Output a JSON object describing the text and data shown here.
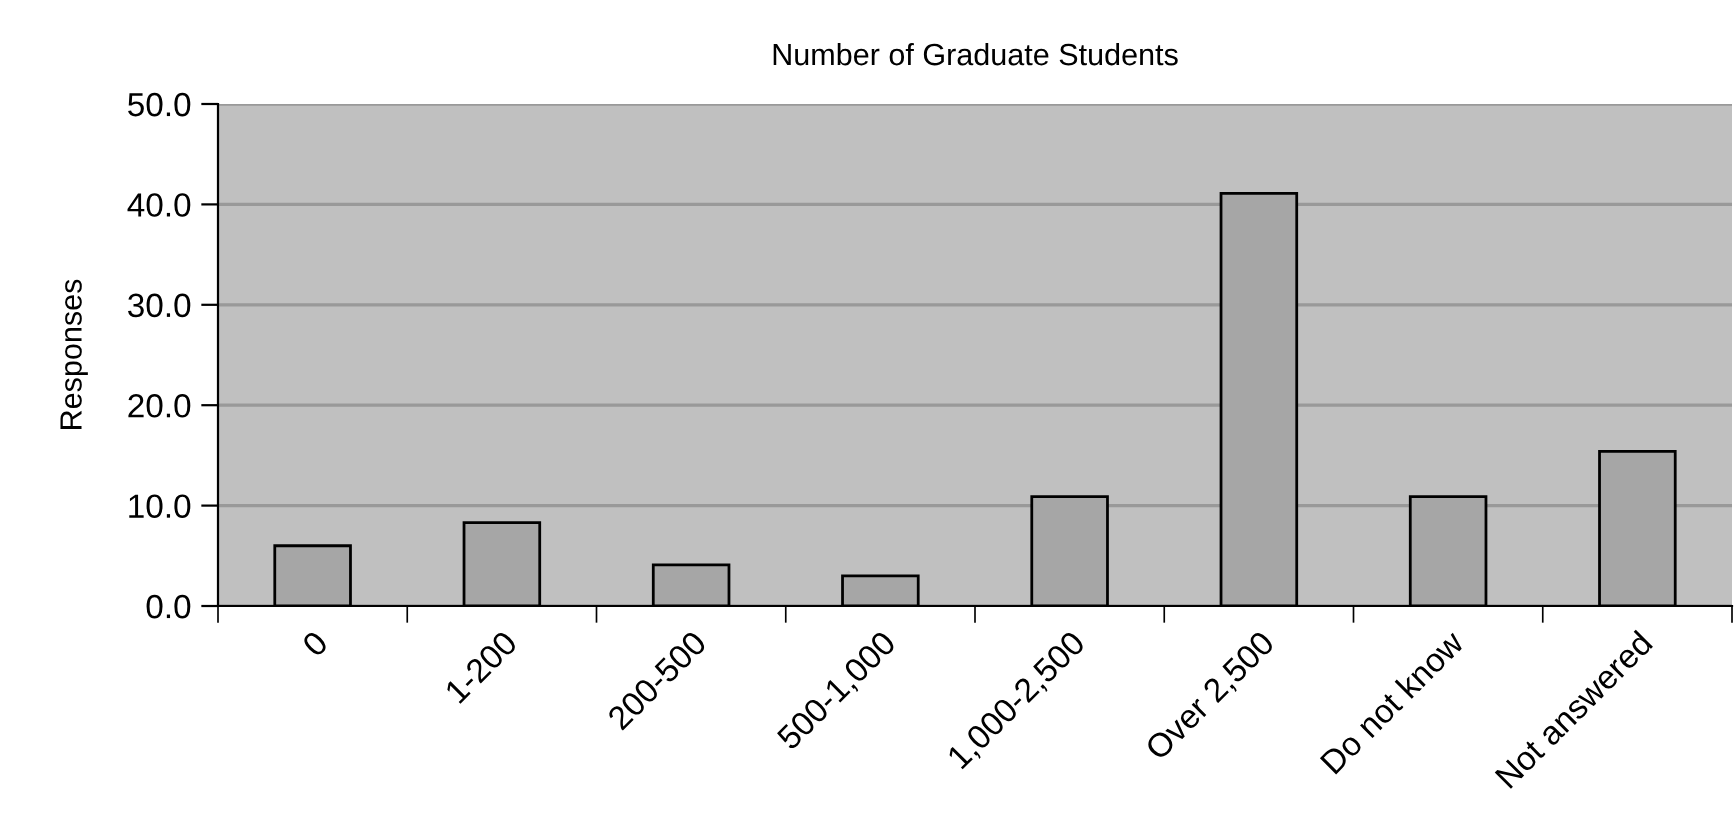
{
  "chart_data": {
    "type": "bar",
    "title": "Number of Graduate Students",
    "ylabel": "Responses",
    "categories": [
      "0",
      "1-200",
      "200-500",
      "500-1,000",
      "1,000-2,500",
      "Over 2,500",
      "Do not know",
      "Not answered"
    ],
    "values": [
      6.0,
      8.3,
      4.1,
      3.0,
      10.9,
      41.1,
      10.9,
      15.4
    ],
    "color": "#a6a6a6",
    "ylim": [
      0,
      50
    ],
    "yticks": [
      {
        "value": 0,
        "label": "0.0"
      },
      {
        "value": 10,
        "label": "10.0"
      },
      {
        "value": 20,
        "label": "20.0"
      },
      {
        "value": 30,
        "label": "30.0"
      },
      {
        "value": 40,
        "label": "40.0"
      },
      {
        "value": 50,
        "label": "50.0"
      }
    ],
    "grid": "y"
  }
}
